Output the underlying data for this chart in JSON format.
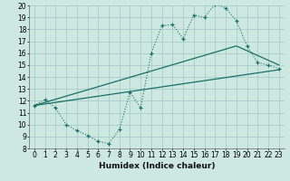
{
  "xlabel": "Humidex (Indice chaleur)",
  "bg_color": "#cce8e0",
  "grid_color": "#aacccc",
  "line_color": "#1a7068",
  "xlim": [
    -0.5,
    23.5
  ],
  "ylim": [
    8,
    20
  ],
  "xticks": [
    0,
    1,
    2,
    3,
    4,
    5,
    6,
    7,
    8,
    9,
    10,
    11,
    12,
    13,
    14,
    15,
    16,
    17,
    18,
    19,
    20,
    21,
    22,
    23
  ],
  "yticks": [
    8,
    9,
    10,
    11,
    12,
    13,
    14,
    15,
    16,
    17,
    18,
    19,
    20
  ],
  "line1_x": [
    0,
    1,
    2,
    3,
    4,
    5,
    6,
    7,
    8,
    9,
    10,
    11,
    12,
    13,
    14,
    15,
    16,
    17,
    18,
    19,
    20,
    21,
    22,
    23
  ],
  "line1_y": [
    11.6,
    12.1,
    11.4,
    10.0,
    9.5,
    9.1,
    8.6,
    8.4,
    9.6,
    12.7,
    11.4,
    16.0,
    18.3,
    18.4,
    17.2,
    19.2,
    19.0,
    20.1,
    19.8,
    18.7,
    16.6,
    15.2,
    15.0,
    14.7
  ],
  "line2_x": [
    0,
    19,
    23
  ],
  "line2_y": [
    11.6,
    16.6,
    15.0
  ],
  "line3_x": [
    0,
    23
  ],
  "line3_y": [
    11.6,
    14.6
  ]
}
